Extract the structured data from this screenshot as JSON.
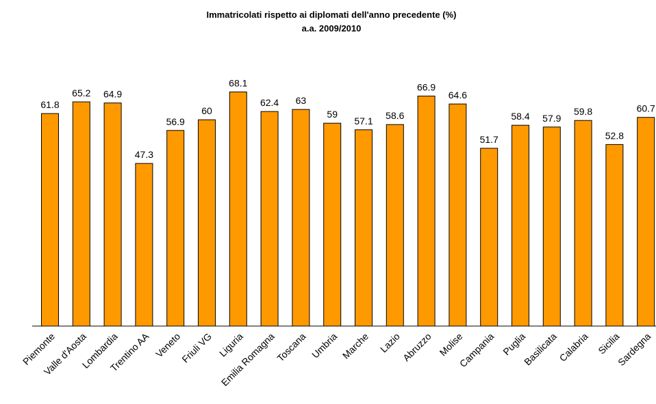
{
  "chart_data": {
    "type": "bar",
    "title": "Immatricolati rispetto ai diplomati dell'anno precedente (%)",
    "subtitle": "a.a. 2009/2010",
    "xlabel": "",
    "ylabel": "",
    "ylim": [
      0,
      80
    ],
    "grid": false,
    "legend": "none",
    "bar_color": "#FF9900",
    "categories": [
      "Piemonte",
      "Valle d'Aosta",
      "Lombardia",
      "Trentino AA",
      "Veneto",
      "Friuli VG",
      "Liguria",
      "Emilia Romagna",
      "Toscana",
      "Umbria",
      "Marche",
      "Lazio",
      "Abruzzo",
      "Molise",
      "Campania",
      "Puglia",
      "Basilicata",
      "Calabria",
      "Sicilia",
      "Sardegna"
    ],
    "values": [
      61.8,
      65.2,
      64.9,
      47.3,
      56.9,
      60,
      68.1,
      62.4,
      63,
      59,
      57.1,
      58.6,
      66.9,
      64.6,
      51.7,
      58.4,
      57.9,
      59.8,
      52.8,
      60.7
    ],
    "value_labels": [
      "61.8",
      "65.2",
      "64.9",
      "47.3",
      "56.9",
      "60",
      "68.1",
      "62.4",
      "63",
      "59",
      "57.1",
      "58.6",
      "66.9",
      "64.6",
      "51.7",
      "58.4",
      "57.9",
      "59.8",
      "52.8",
      "60.7"
    ]
  }
}
